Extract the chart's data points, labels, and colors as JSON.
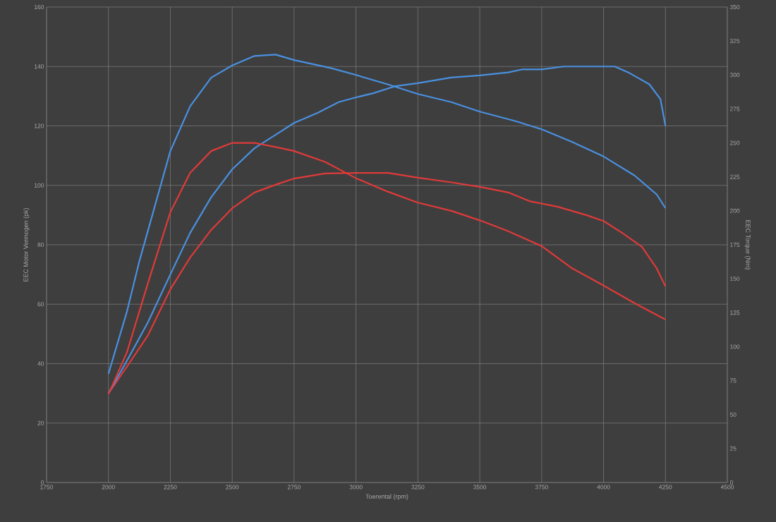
{
  "chart_data": {
    "type": "line",
    "xlabel": "Toerental (rpm)",
    "ylabel": "EEC Motor Vermogen (pk)",
    "y2label": "EEC Torque (Nm)",
    "xlim": [
      1750,
      4500
    ],
    "xticks": [
      1750,
      2000,
      2250,
      2500,
      2750,
      3000,
      3250,
      3500,
      3750,
      4000,
      4250,
      4500
    ],
    "ylim": [
      0,
      160
    ],
    "yticks": [
      0,
      20,
      40,
      60,
      80,
      100,
      120,
      140,
      160
    ],
    "y2lim": [
      0,
      350
    ],
    "y2ticks": [
      0,
      25,
      50,
      75,
      100,
      125,
      150,
      175,
      200,
      225,
      250,
      275,
      300,
      325,
      350
    ],
    "grid": true,
    "marker": "none",
    "line_style": "solid",
    "series": [
      {
        "color": "#e03a3a",
        "x": [
          2000,
          2075,
          2160,
          2250,
          2330,
          2415,
          2500,
          2590,
          2675,
          2750,
          2875,
          3000,
          3130,
          3250,
          3385,
          3500,
          3615,
          3700,
          3815,
          3930,
          4000,
          4075,
          4155,
          4215,
          4250
        ],
        "values": [
          30,
          39,
          49.6,
          65,
          75.7,
          85,
          92.3,
          97.6,
          100.2,
          102.3,
          104,
          104.2,
          104.2,
          102.6,
          101,
          99.5,
          97.6,
          94.7,
          92.8,
          90,
          88,
          84,
          79.3,
          72,
          66
        ]
      },
      {
        "color": "#4a90e0",
        "x": [
          2000,
          2075,
          2160,
          2250,
          2330,
          2415,
          2500,
          2590,
          2675,
          2750,
          2845,
          2930,
          3000,
          3070,
          3160,
          3250,
          3385,
          3500,
          3615,
          3670,
          3750,
          3840,
          4000,
          4045,
          4100,
          4185,
          4230,
          4250
        ],
        "values": [
          30,
          41,
          54,
          70,
          84,
          96,
          105.4,
          112.5,
          117,
          121,
          124.4,
          128,
          129.6,
          131,
          133.4,
          134.4,
          136.3,
          137,
          138,
          139,
          139,
          140,
          140,
          140,
          138,
          134,
          129,
          120
        ]
      },
      {
        "axis": "y2",
        "color": "#e03a3a",
        "x": [
          2000,
          2075,
          2160,
          2250,
          2330,
          2415,
          2500,
          2590,
          2675,
          2750,
          2875,
          3000,
          3130,
          3250,
          3385,
          3500,
          3615,
          3750,
          3870,
          4000,
          4125,
          4250
        ],
        "values": [
          65,
          96,
          147,
          199,
          228,
          244,
          250,
          250,
          247,
          244,
          236,
          224,
          214,
          206,
          200,
          193,
          185,
          174,
          158,
          145,
          132,
          120
        ]
      },
      {
        "axis": "y2",
        "color": "#4a90e0",
        "x": [
          2000,
          2075,
          2125,
          2250,
          2330,
          2415,
          2500,
          2590,
          2675,
          2750,
          2900,
          3000,
          3130,
          3250,
          3385,
          3500,
          3645,
          3750,
          3870,
          4000,
          4125,
          4215,
          4250
        ],
        "values": [
          80,
          126,
          163,
          244,
          277,
          298,
          307,
          314,
          315,
          311,
          305,
          300,
          293,
          286,
          280,
          273,
          266,
          260,
          251,
          240,
          226,
          212,
          202
        ]
      }
    ]
  }
}
